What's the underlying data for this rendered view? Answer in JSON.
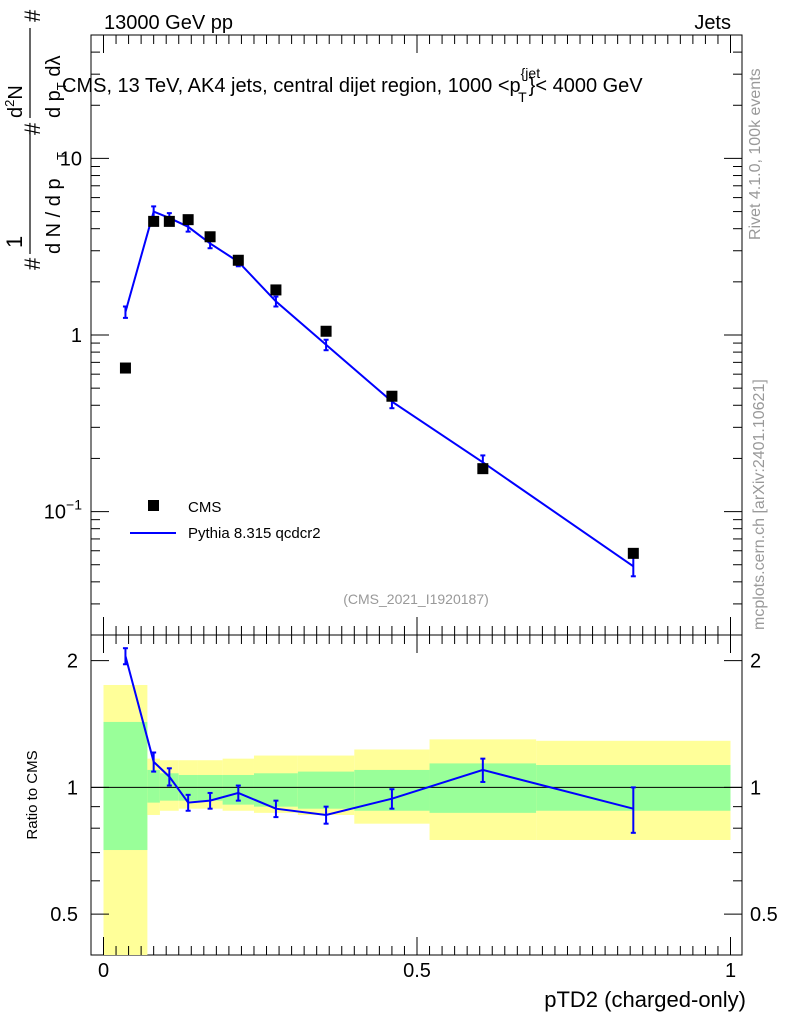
{
  "header": {
    "left": "13000 GeV pp",
    "right": "Jets"
  },
  "main_title": "CMS, 13 TeV, AK4 jets, central dijet region, 1000 <p",
  "main_title_sup": "{jet",
  "main_title_sub": "T",
  "main_title_end": "}< 4000 GeV",
  "side_labels": {
    "rivet": "Rivet 4.1.0,  100k events",
    "mcplots": "mcplots.cern.ch [arXiv:2401.10621]"
  },
  "analysis_id": "(CMS_2021_I1920187)",
  "y_axis_main": {
    "label_hash1": "#",
    "label_one": "1",
    "label_denom": "d N / d p",
    "label_denom_sub": "T",
    "label_hash2": "#",
    "label_num2": "d",
    "label_num2_sup": "2",
    "label_num2_rest": "N",
    "label_denom2": "d p",
    "label_denom2_sub": "T",
    "label_denom2_rest": " dλ",
    "label_hash3": "#"
  },
  "x_axis_label": "pTD2 (charged-only)",
  "ratio_y_label": "Ratio to CMS",
  "legend": {
    "data": "CMS",
    "mc": "Pythia 8.315 qcdcr2"
  },
  "colors": {
    "data": "#000000",
    "mc": "#0000ff",
    "band_inner": "#99ff99",
    "band_outer": "#ffff99"
  },
  "chart_data": {
    "type": "scatter",
    "title": "CMS, 13 TeV, AK4 jets, central dijet region, 1000 < pT(jet) < 4000 GeV",
    "xlabel": "pTD2 (charged-only)",
    "ylabel": "1/N dN/dλ",
    "xlim": [
      0,
      1
    ],
    "ylim": [
      0.02,
      50
    ],
    "yscale": "log",
    "main_ticks": [
      {
        "value": 0.1,
        "base": "10",
        "exp": "−1"
      },
      {
        "value": 1,
        "base": "1",
        "exp": ""
      },
      {
        "value": 10,
        "base": "10",
        "exp": ""
      }
    ],
    "x_ticks": [
      {
        "value": 0,
        "label": "0"
      },
      {
        "value": 0.5,
        "label": "0.5"
      },
      {
        "value": 1,
        "label": "1"
      }
    ],
    "bin_edges": [
      0,
      0.07,
      0.09,
      0.12,
      0.15,
      0.19,
      0.24,
      0.31,
      0.4,
      0.52,
      0.69,
      1.0
    ],
    "x": [
      0.035,
      0.08,
      0.105,
      0.135,
      0.17,
      0.215,
      0.275,
      0.355,
      0.46,
      0.605,
      0.845
    ],
    "series": [
      {
        "name": "CMS",
        "values": [
          0.65,
          4.4,
          4.4,
          4.5,
          3.6,
          2.65,
          1.8,
          1.05,
          0.45,
          0.175,
          0.058
        ]
      },
      {
        "name": "Pythia 8.315 qcdcr2",
        "values": [
          1.35,
          5.0,
          4.6,
          4.1,
          3.3,
          2.6,
          1.55,
          0.88,
          0.42,
          0.19,
          0.049
        ],
        "err": [
          0.1,
          0.35,
          0.3,
          0.25,
          0.2,
          0.15,
          0.1,
          0.06,
          0.035,
          0.018,
          0.006
        ]
      }
    ],
    "ratio": {
      "ylabel": "Ratio to CMS",
      "ylim": [
        0.4,
        2.3
      ],
      "yscale": "log",
      "ticks": [
        {
          "value": 0.5,
          "label": "0.5"
        },
        {
          "value": 1,
          "label": "1"
        },
        {
          "value": 2,
          "label": "2"
        }
      ],
      "values": [
        2.05,
        1.15,
        1.06,
        0.92,
        0.93,
        0.97,
        0.89,
        0.86,
        0.94,
        1.1,
        0.89
      ],
      "err": [
        0.09,
        0.06,
        0.05,
        0.04,
        0.04,
        0.04,
        0.04,
        0.04,
        0.05,
        0.07,
        0.11
      ],
      "band_inner": [
        [
          0.71,
          1.43
        ],
        [
          0.92,
          1.1
        ],
        [
          0.93,
          1.08
        ],
        [
          0.93,
          1.07
        ],
        [
          0.93,
          1.07
        ],
        [
          0.91,
          1.07
        ],
        [
          0.9,
          1.08
        ],
        [
          0.89,
          1.09
        ],
        [
          0.88,
          1.1
        ],
        [
          0.87,
          1.14
        ],
        [
          0.88,
          1.13
        ]
      ],
      "band_outer": [
        [
          0.4,
          1.75
        ],
        [
          0.86,
          1.17
        ],
        [
          0.88,
          1.16
        ],
        [
          0.89,
          1.16
        ],
        [
          0.89,
          1.16
        ],
        [
          0.88,
          1.17
        ],
        [
          0.87,
          1.19
        ],
        [
          0.86,
          1.19
        ],
        [
          0.82,
          1.23
        ],
        [
          0.75,
          1.3
        ],
        [
          0.75,
          1.29
        ]
      ]
    }
  }
}
